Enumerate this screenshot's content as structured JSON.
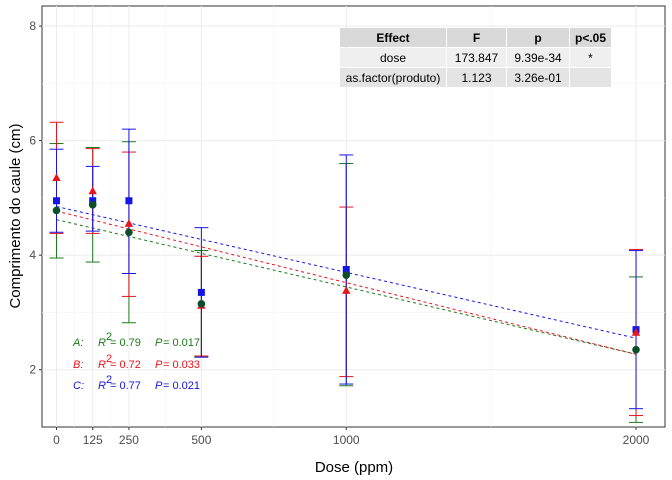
{
  "chart_data": {
    "type": "scatter",
    "xlabel": "Dose (ppm)",
    "ylabel": "Comprimento do caule (cm)",
    "xlim": [
      -50,
      2100
    ],
    "ylim": [
      1.0,
      8.35
    ],
    "x_ticks": [
      0,
      125,
      250,
      500,
      1000,
      2000
    ],
    "y_ticks": [
      2,
      4,
      6,
      8
    ],
    "grid": true,
    "series": [
      {
        "key": "A",
        "color": "#1b7a1b",
        "marker": "circle",
        "points": [
          {
            "x": 0,
            "y": 4.78,
            "lo": 3.95,
            "hi": 5.95
          },
          {
            "x": 125,
            "y": 4.88,
            "lo": 3.88,
            "hi": 5.88
          },
          {
            "x": 250,
            "y": 4.4,
            "lo": 2.82,
            "hi": 5.98
          },
          {
            "x": 500,
            "y": 3.15,
            "lo": 2.22,
            "hi": 4.08
          },
          {
            "x": 1000,
            "y": 3.65,
            "lo": 1.72,
            "hi": 5.6
          },
          {
            "x": 2000,
            "y": 2.35,
            "lo": 1.08,
            "hi": 3.62
          }
        ],
        "trend": [
          4.62,
          2.27
        ],
        "annotation": {
          "label": "A:",
          "r2": "0.79",
          "p": "0.017"
        }
      },
      {
        "key": "B",
        "color": "#e8141c",
        "marker": "triangle",
        "points": [
          {
            "x": 0,
            "y": 5.35,
            "lo": 4.38,
            "hi": 6.32
          },
          {
            "x": 125,
            "y": 5.12,
            "lo": 4.38,
            "hi": 5.86
          },
          {
            "x": 250,
            "y": 4.55,
            "lo": 3.28,
            "hi": 5.8
          },
          {
            "x": 500,
            "y": 3.12,
            "lo": 2.24,
            "hi": 3.98
          },
          {
            "x": 1000,
            "y": 3.38,
            "lo": 1.88,
            "hi": 4.84
          },
          {
            "x": 2000,
            "y": 2.65,
            "lo": 1.2,
            "hi": 4.1
          }
        ],
        "trend": [
          4.77,
          2.27
        ],
        "annotation": {
          "label": "B:",
          "r2": "0.72",
          "p": "0.033"
        }
      },
      {
        "key": "C",
        "color": "#1515e6",
        "marker": "square",
        "points": [
          {
            "x": 0,
            "y": 4.95,
            "lo": 4.4,
            "hi": 5.85
          },
          {
            "x": 125,
            "y": 4.95,
            "lo": 4.42,
            "hi": 5.55
          },
          {
            "x": 250,
            "y": 4.95,
            "lo": 3.68,
            "hi": 6.2
          },
          {
            "x": 500,
            "y": 3.35,
            "lo": 2.22,
            "hi": 4.48
          },
          {
            "x": 1000,
            "y": 3.75,
            "lo": 1.75,
            "hi": 5.75
          },
          {
            "x": 2000,
            "y": 2.7,
            "lo": 1.32,
            "hi": 4.08
          }
        ],
        "trend": [
          4.85,
          2.55
        ],
        "annotation": {
          "label": "C:",
          "r2": "0.77",
          "p": "0.021"
        }
      }
    ],
    "annotation_text": {
      "r2_symbol": "R",
      "r2_sup": "2",
      "eq": " = ",
      "p_symbol": "P"
    },
    "table": {
      "headers": [
        "Effect",
        "F",
        "p",
        "p<.05"
      ],
      "rows": [
        [
          "dose",
          "173.847",
          "9.39e-34",
          "*"
        ],
        [
          "as.factor(produto)",
          "1.123",
          "3.26e-01",
          ""
        ]
      ]
    }
  }
}
